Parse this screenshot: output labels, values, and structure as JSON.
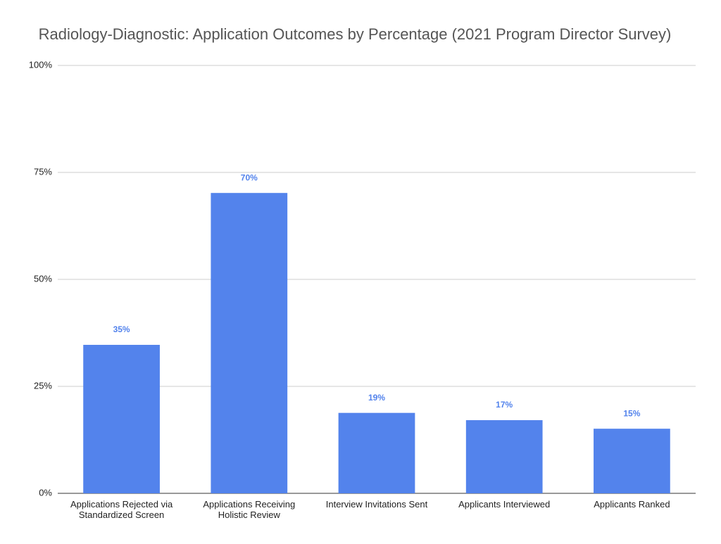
{
  "chart_data": {
    "type": "bar",
    "title": "Radiology-Diagnostic: Application Outcomes by Percentage (2021 Program Director Survey)",
    "categories": [
      "Applications Rejected via Standardized Screen",
      "Applications Receiving Holistic Review",
      "Interview Invitations Sent",
      "Applicants Interviewed",
      "Applicants Ranked"
    ],
    "values": [
      34.7,
      70.2,
      18.8,
      17.1,
      15.1
    ],
    "value_labels": [
      "35%",
      "70%",
      "19%",
      "17%",
      "15%"
    ],
    "color": "#5383ec",
    "ylim": [
      0,
      100
    ],
    "yticks": [
      {
        "value": 0,
        "label": "0%"
      },
      {
        "value": 25,
        "label": "25%"
      },
      {
        "value": 50,
        "label": "50%"
      },
      {
        "value": 75,
        "label": "75%"
      },
      {
        "value": 100,
        "label": "100%"
      }
    ],
    "grid": true
  }
}
